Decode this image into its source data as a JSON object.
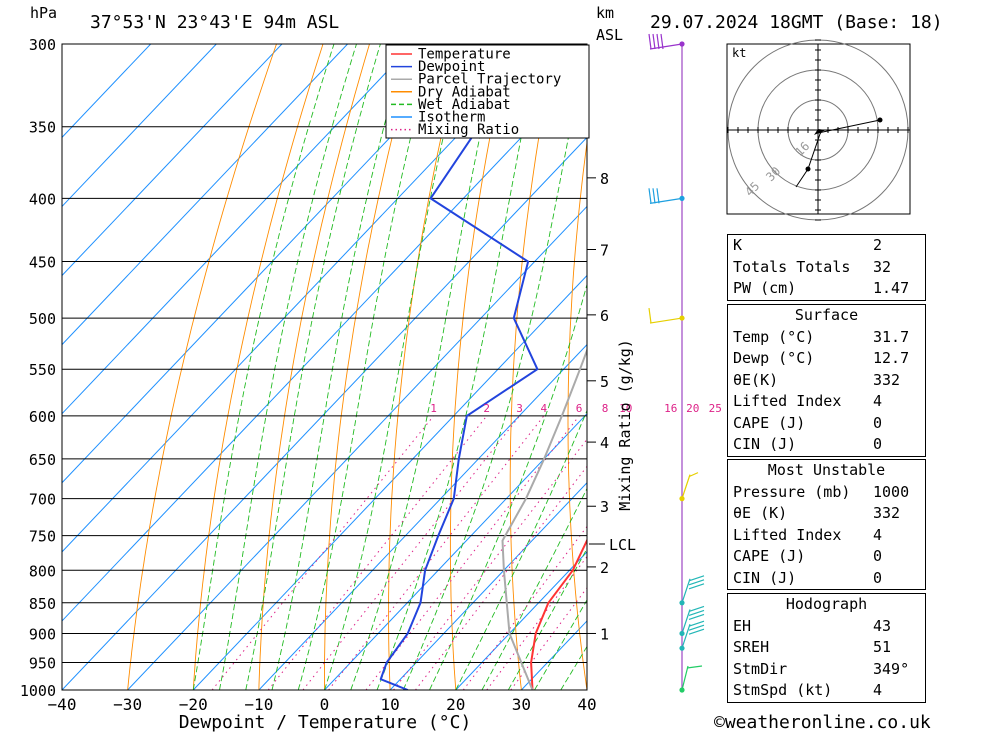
{
  "header": {
    "location": "37°53'N 23°43'E 94m ASL",
    "datetime": "29.07.2024 18GMT (Base: 18)",
    "hpa_unit": "hPa",
    "km_unit": "km",
    "asl_unit": "ASL"
  },
  "legend": [
    {
      "label": "Temperature",
      "color": "#ff3333",
      "style": "solid"
    },
    {
      "label": "Dewpoint",
      "color": "#2244dd",
      "style": "solid"
    },
    {
      "label": "Parcel Trajectory",
      "color": "#aaaaaa",
      "style": "solid"
    },
    {
      "label": "Dry Adiabat",
      "color": "#ff8c00",
      "style": "solid"
    },
    {
      "label": "Wet Adiabat",
      "color": "#22bb22",
      "style": "dashed"
    },
    {
      "label": "Isotherm",
      "color": "#1e90ff",
      "style": "solid"
    },
    {
      "label": "Mixing Ratio",
      "color": "#dd2288",
      "style": "dotted"
    }
  ],
  "chart_data": {
    "type": "line",
    "xlabel": "Dewpoint / Temperature (°C)",
    "ylabel": "hPa",
    "y2label": "Mixing Ratio (g/kg)",
    "xlim": [
      -40,
      40
    ],
    "ylim": [
      1000,
      300
    ],
    "y_scale": "log",
    "x_ticks": [
      "−40",
      "−30",
      "−20",
      "−10",
      "0",
      "10",
      "20",
      "30",
      "40"
    ],
    "pressure_ticks": [
      300,
      350,
      400,
      450,
      500,
      550,
      600,
      650,
      700,
      750,
      800,
      850,
      900,
      950,
      1000
    ],
    "km_ticks": [
      {
        "km": "1",
        "p": 900
      },
      {
        "km": "2",
        "p": 795
      },
      {
        "km": "3",
        "p": 710
      },
      {
        "km": "4",
        "p": 630
      },
      {
        "km": "5",
        "p": 562
      },
      {
        "km": "6",
        "p": 497
      },
      {
        "km": "7",
        "p": 440
      },
      {
        "km": "8",
        "p": 385
      }
    ],
    "lcl": {
      "label": "LCL",
      "p": 757
    },
    "mixing_ratio_labels": [
      "1",
      "2",
      "3",
      "4",
      "6",
      "8",
      "10",
      "16",
      "20",
      "25"
    ],
    "series": [
      {
        "name": "Temperature",
        "color": "#ff3333",
        "points": [
          [
            1000,
            31.7
          ],
          [
            950,
            27.5
          ],
          [
            900,
            24.0
          ],
          [
            850,
            21.5
          ],
          [
            800,
            20.5
          ],
          [
            750,
            18.0
          ],
          [
            700,
            15.0
          ],
          [
            650,
            12.5
          ],
          [
            600,
            10.0
          ],
          [
            550,
            6.0
          ],
          [
            500,
            -1.0
          ],
          [
            450,
            -7.5
          ],
          [
            400,
            -11.0
          ],
          [
            370,
            -15.0
          ]
        ]
      },
      {
        "name": "Dewpoint",
        "color": "#2244dd",
        "points": [
          [
            1000,
            12.7
          ],
          [
            980,
            7.0
          ],
          [
            950,
            5.5
          ],
          [
            900,
            4.5
          ],
          [
            850,
            2.0
          ],
          [
            800,
            -2.0
          ],
          [
            750,
            -5.0
          ],
          [
            700,
            -8.0
          ],
          [
            650,
            -13.0
          ],
          [
            600,
            -18.0
          ],
          [
            550,
            -14.0
          ],
          [
            500,
            -25.0
          ],
          [
            450,
            -31.0
          ],
          [
            400,
            -55.0
          ],
          [
            350,
            -58.0
          ],
          [
            300,
            -60.0
          ]
        ]
      },
      {
        "name": "Parcel Trajectory",
        "color": "#aaaaaa",
        "points": [
          [
            1000,
            31.7
          ],
          [
            900,
            20.0
          ],
          [
            800,
            10.0
          ],
          [
            757,
            5.5
          ],
          [
            700,
            3.0
          ],
          [
            650,
            0.0
          ],
          [
            600,
            -3.5
          ],
          [
            550,
            -7.5
          ],
          [
            500,
            -12.0
          ],
          [
            450,
            -17.5
          ],
          [
            400,
            -24.0
          ],
          [
            350,
            -31.5
          ],
          [
            310,
            -38.5
          ]
        ]
      }
    ]
  },
  "wind_barbs": [
    {
      "p": 300,
      "color": "#9933cc"
    },
    {
      "p": 400,
      "color": "#1ea0e0"
    },
    {
      "p": 500,
      "color": "#e6cf00"
    },
    {
      "p": 700,
      "color": "#e6cf00"
    },
    {
      "p": 850,
      "color": "#22b6b6"
    },
    {
      "p": 900,
      "color": "#22b6b6"
    },
    {
      "p": 925,
      "color": "#22b6b6"
    },
    {
      "p": 1000,
      "color": "#22cc66"
    }
  ],
  "hodograph": {
    "unit": "kt",
    "ring_labels": [
      "16",
      "30",
      "45"
    ]
  },
  "indices": {
    "general": [
      {
        "label": "K",
        "value": "2"
      },
      {
        "label": "Totals Totals",
        "value": "32"
      },
      {
        "label": "PW (cm)",
        "value": "1.47"
      }
    ],
    "surface_title": "Surface",
    "surface": [
      {
        "label": "Temp (°C)",
        "value": "31.7"
      },
      {
        "label": "Dewp (°C)",
        "value": "12.7"
      },
      {
        "label": "θE(K)",
        "value": "332"
      },
      {
        "label": "Lifted Index",
        "value": "4"
      },
      {
        "label": "CAPE (J)",
        "value": "0"
      },
      {
        "label": "CIN (J)",
        "value": "0"
      }
    ],
    "mu_title": "Most Unstable",
    "mu": [
      {
        "label": "Pressure (mb)",
        "value": "1000"
      },
      {
        "label": "θE (K)",
        "value": "332"
      },
      {
        "label": "Lifted Index",
        "value": "4"
      },
      {
        "label": "CAPE (J)",
        "value": "0"
      },
      {
        "label": "CIN (J)",
        "value": "0"
      }
    ],
    "hodo_title": "Hodograph",
    "hodo": [
      {
        "label": "EH",
        "value": "43"
      },
      {
        "label": "SREH",
        "value": "51"
      },
      {
        "label": "StmDir",
        "value": "349°"
      },
      {
        "label": "StmSpd (kt)",
        "value": "4"
      }
    ]
  },
  "footer": {
    "copyright": "©weatheronline.co.uk"
  }
}
